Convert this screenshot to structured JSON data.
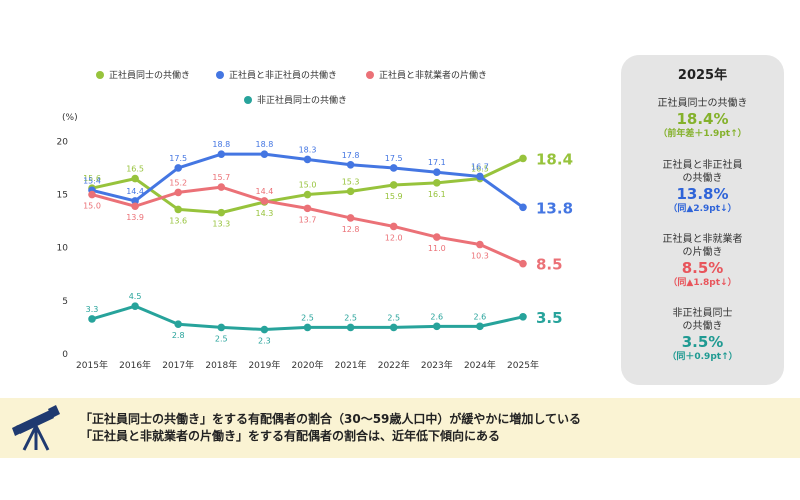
{
  "chart_data": {
    "type": "line",
    "unit_label": "(%)",
    "categories": [
      "2015年",
      "2016年",
      "2017年",
      "2018年",
      "2019年",
      "2020年",
      "2021年",
      "2022年",
      "2023年",
      "2024年",
      "2025年"
    ],
    "ylim": [
      0,
      20
    ],
    "yticks": [
      0,
      5,
      10,
      15,
      20
    ],
    "series": [
      {
        "name": "正社員同士の共働き",
        "color": "#97c33c",
        "values": [
          15.6,
          16.5,
          13.6,
          13.3,
          14.3,
          15.0,
          15.3,
          15.9,
          16.1,
          16.5,
          18.4
        ],
        "labels": [
          "15.6",
          "16.5",
          "13.6",
          "13.3",
          "14.3",
          "15.0",
          "15.3",
          "15.9",
          "16.1",
          "16.5",
          "18.4"
        ]
      },
      {
        "name": "正社員と非正社員の共働き",
        "color": "#4476e2",
        "values": [
          15.4,
          14.4,
          17.5,
          18.8,
          18.8,
          18.3,
          17.8,
          17.5,
          17.1,
          16.7,
          13.8
        ],
        "labels": [
          "15.4",
          "14.4",
          "17.5",
          "18.8",
          "18.8",
          "18.3",
          "17.8",
          "17.5",
          "17.1",
          "16.7",
          "13.8"
        ]
      },
      {
        "name": "正社員と非就業者の片働き",
        "color": "#eb7177",
        "values": [
          15.0,
          13.9,
          15.2,
          15.7,
          14.4,
          13.7,
          12.8,
          12.0,
          11.0,
          10.3,
          8.5
        ],
        "labels": [
          "15.0",
          "13.9",
          "15.2",
          "15.7",
          "14.4",
          "13.7",
          "12.8",
          "12.0",
          "11.0",
          "10.3",
          "8.5"
        ]
      },
      {
        "name": "非正社員同士の共働き",
        "color": "#27a39b",
        "values": [
          3.3,
          4.5,
          2.8,
          2.5,
          2.3,
          2.5,
          2.5,
          2.5,
          2.6,
          2.6,
          3.5
        ],
        "labels": [
          "3.3",
          "4.5",
          "2.8",
          "2.5",
          "2.3",
          "2.5",
          "2.5",
          "2.5",
          "2.6",
          "2.6",
          "3.5"
        ]
      }
    ],
    "legend_position": "top"
  },
  "panel": {
    "year": "2025年",
    "items": [
      {
        "label_lines": [
          "正社員同士の共働き"
        ],
        "value": "18.4%",
        "change": "（前年差＋1.9pt↑）",
        "color": "#84b12b"
      },
      {
        "label_lines": [
          "正社員と非正社員",
          "の共働き"
        ],
        "value": "13.8%",
        "change": "（同▲2.9pt↓）",
        "color": "#2f64d8"
      },
      {
        "label_lines": [
          "正社員と非就業者",
          "の片働き"
        ],
        "value": "8.5%",
        "change": "（同▲1.8pt↓）",
        "color": "#e8555c"
      },
      {
        "label_lines": [
          "非正社員同士",
          "の共働き"
        ],
        "value": "3.5%",
        "change": "（同＋0.9pt↑）",
        "color": "#1f9a92"
      }
    ]
  },
  "summary": {
    "line1": "「正社員同士の共働き」をする有配偶者の割合（30〜59歳人口中）が緩やかに増加している",
    "line2": "「正社員と非就業者の片働き」をする有配偶者の割合は、近年低下傾向にある"
  },
  "icons": {
    "summary_icon": "telescope-icon"
  }
}
